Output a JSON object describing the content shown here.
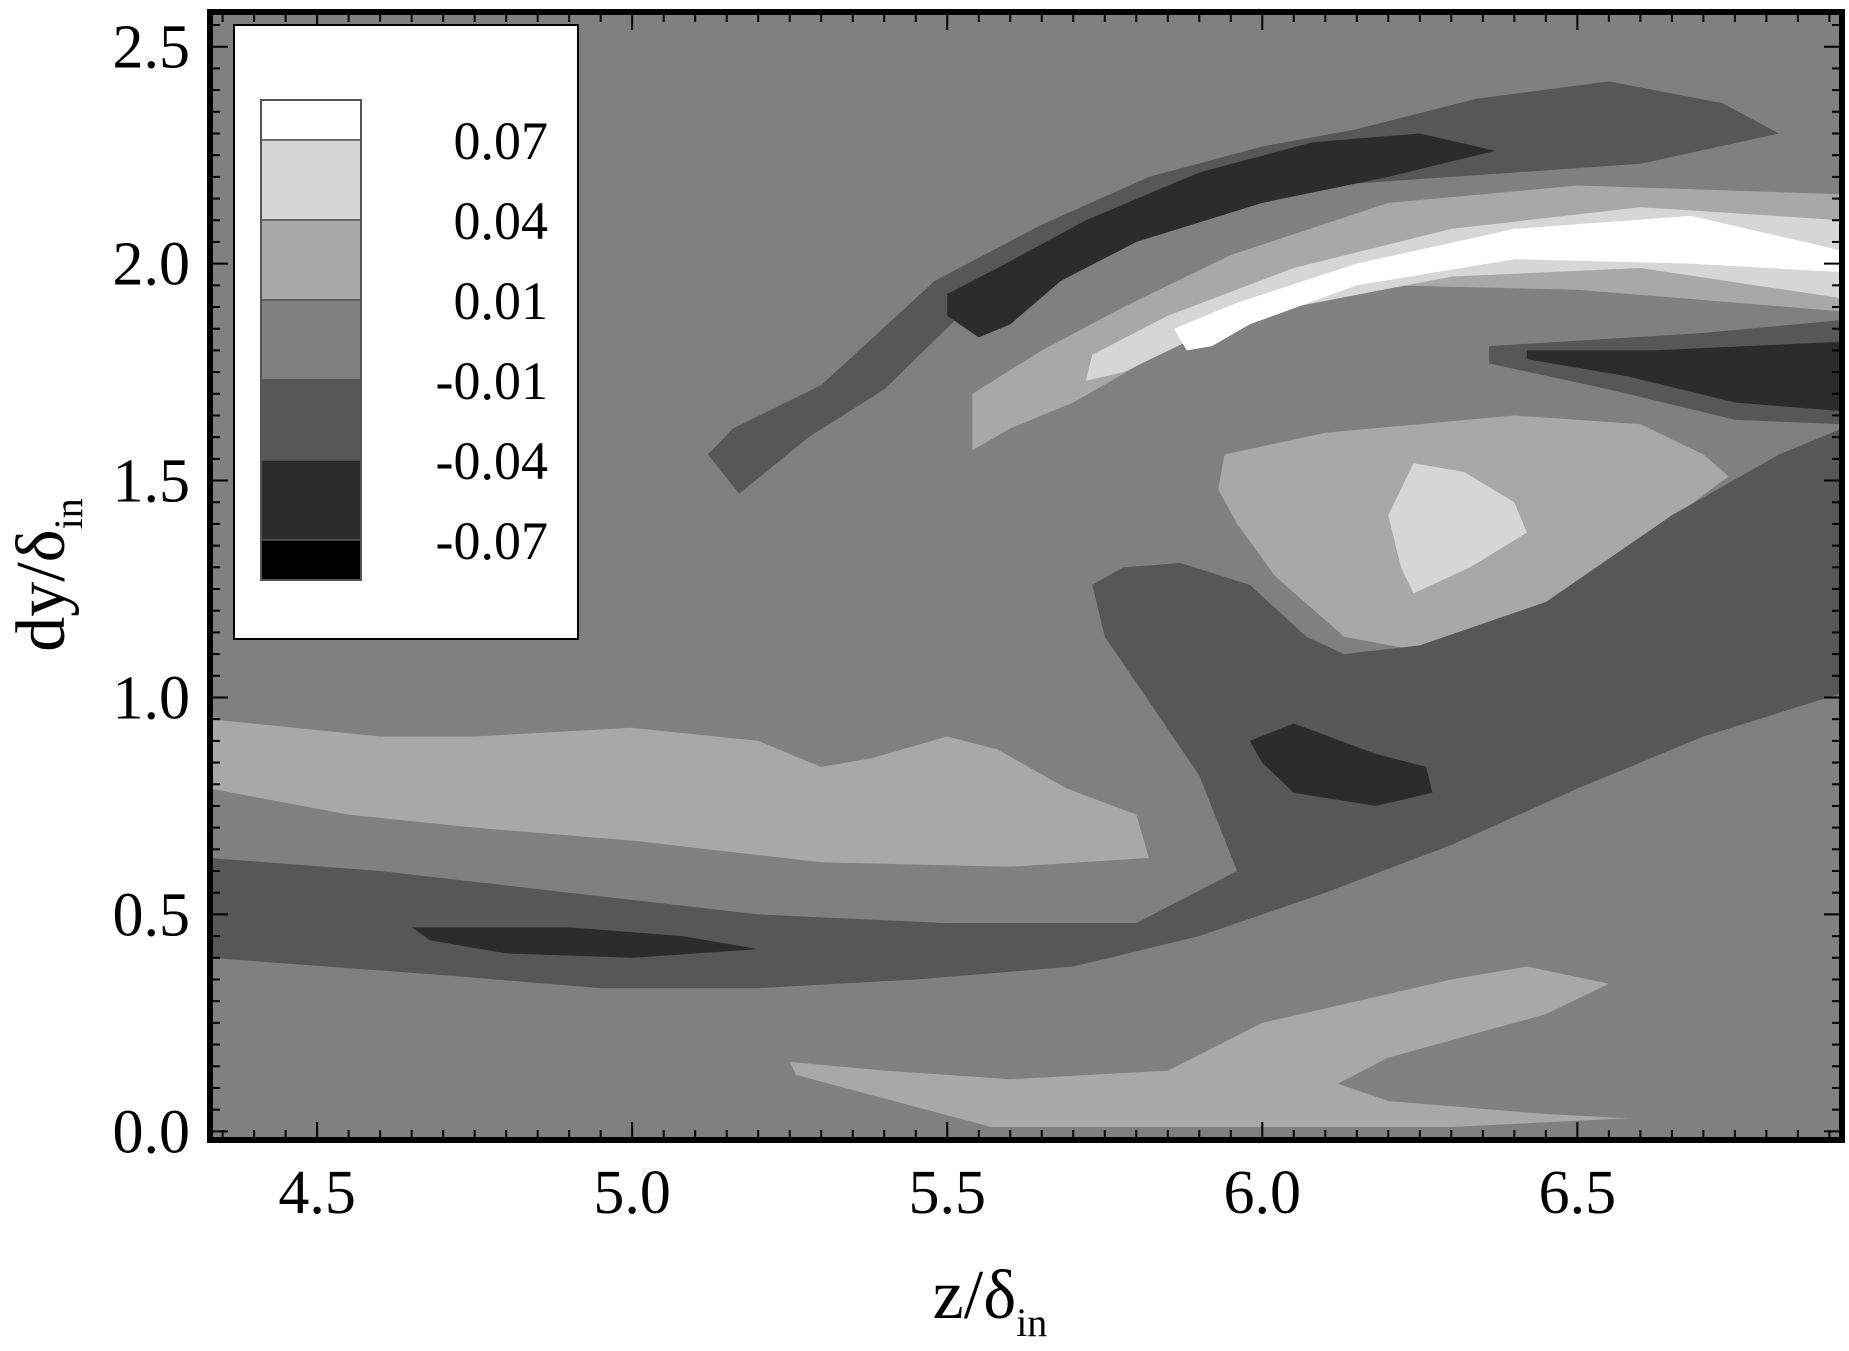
{
  "chart_data": {
    "type": "heatmap",
    "subtype": "filled-contour",
    "xlabel": {
      "main": "z/δ",
      "sub": "in"
    },
    "ylabel": {
      "main": "dy/δ",
      "sub": "in"
    },
    "xlim": [
      4.33,
      6.92
    ],
    "ylim": [
      -0.02,
      2.58
    ],
    "x_ticks": [
      "4.5",
      "5.0",
      "5.5",
      "6.0",
      "6.5"
    ],
    "y_ticks": [
      "0.0",
      "0.5",
      "1.0",
      "1.5",
      "2.0",
      "2.5"
    ],
    "legend": {
      "position": "top-left",
      "levels": [
        "0.07",
        "0.04",
        "0.01",
        "-0.01",
        "-0.04",
        "-0.07"
      ],
      "colors": [
        "#ffffff",
        "#d6d6d6",
        "#a8a8a8",
        "#808080",
        "#575757",
        "#2c2c2c",
        "#000000"
      ]
    },
    "background_color": "#808080",
    "regions": [
      {
        "name": "upper-ridge-outer",
        "level": -0.01,
        "color": "#575757",
        "points": [
          [
            5.17,
            1.47
          ],
          [
            5.12,
            1.56
          ],
          [
            5.16,
            1.62
          ],
          [
            5.3,
            1.72
          ],
          [
            5.48,
            1.96
          ],
          [
            5.65,
            2.09
          ],
          [
            5.82,
            2.2
          ],
          [
            6.0,
            2.27
          ],
          [
            6.15,
            2.31
          ],
          [
            6.34,
            2.38
          ],
          [
            6.55,
            2.42
          ],
          [
            6.73,
            2.37
          ],
          [
            6.82,
            2.3
          ],
          [
            6.6,
            2.23
          ],
          [
            6.3,
            2.2
          ],
          [
            6.0,
            2.17
          ],
          [
            5.8,
            2.1
          ],
          [
            5.65,
            2.0
          ],
          [
            5.52,
            1.88
          ],
          [
            5.4,
            1.71
          ],
          [
            5.28,
            1.6
          ]
        ]
      },
      {
        "name": "upper-ridge-core",
        "level": -0.04,
        "color": "#2c2c2c",
        "points": [
          [
            5.5,
            1.88
          ],
          [
            5.5,
            1.93
          ],
          [
            5.58,
            1.99
          ],
          [
            5.72,
            2.1
          ],
          [
            5.9,
            2.21
          ],
          [
            6.08,
            2.28
          ],
          [
            6.25,
            2.3
          ],
          [
            6.37,
            2.26
          ],
          [
            6.2,
            2.2
          ],
          [
            6.0,
            2.14
          ],
          [
            5.8,
            2.05
          ],
          [
            5.68,
            1.96
          ],
          [
            5.6,
            1.86
          ],
          [
            5.55,
            1.83
          ]
        ]
      },
      {
        "name": "upper-jet-outer",
        "level": 0.01,
        "color": "#a8a8a8",
        "points": [
          [
            5.54,
            1.57
          ],
          [
            5.54,
            1.7
          ],
          [
            5.65,
            1.8
          ],
          [
            5.78,
            1.9
          ],
          [
            5.95,
            2.02
          ],
          [
            6.2,
            2.14
          ],
          [
            6.5,
            2.18
          ],
          [
            6.92,
            2.16
          ],
          [
            6.92,
            1.89
          ],
          [
            6.5,
            1.94
          ],
          [
            6.2,
            1.95
          ],
          [
            5.95,
            1.88
          ],
          [
            5.82,
            1.78
          ],
          [
            5.7,
            1.68
          ],
          [
            5.6,
            1.62
          ]
        ]
      },
      {
        "name": "upper-jet-mid",
        "level": 0.04,
        "color": "#d6d6d6",
        "points": [
          [
            5.72,
            1.73
          ],
          [
            5.73,
            1.79
          ],
          [
            5.85,
            1.88
          ],
          [
            6.05,
            1.99
          ],
          [
            6.3,
            2.08
          ],
          [
            6.6,
            2.13
          ],
          [
            6.92,
            2.1
          ],
          [
            6.92,
            1.92
          ],
          [
            6.6,
            1.99
          ],
          [
            6.3,
            1.97
          ],
          [
            6.05,
            1.9
          ],
          [
            5.88,
            1.82
          ],
          [
            5.78,
            1.75
          ]
        ]
      },
      {
        "name": "upper-jet-core",
        "level": 0.07,
        "color": "#ffffff",
        "points": [
          [
            5.88,
            1.8
          ],
          [
            5.86,
            1.85
          ],
          [
            5.96,
            1.91
          ],
          [
            6.15,
            2.0
          ],
          [
            6.4,
            2.08
          ],
          [
            6.68,
            2.11
          ],
          [
            6.92,
            2.03
          ],
          [
            6.92,
            1.98
          ],
          [
            6.68,
            2.0
          ],
          [
            6.4,
            2.01
          ],
          [
            6.15,
            1.95
          ],
          [
            5.98,
            1.86
          ],
          [
            5.92,
            1.81
          ]
        ]
      },
      {
        "name": "right-band-upper",
        "level": -0.01,
        "color": "#575757",
        "points": [
          [
            6.36,
            1.81
          ],
          [
            6.7,
            1.84
          ],
          [
            6.92,
            1.87
          ],
          [
            6.92,
            1.63
          ],
          [
            6.75,
            1.64
          ],
          [
            6.55,
            1.71
          ],
          [
            6.36,
            1.77
          ]
        ]
      },
      {
        "name": "right-band-upper-core",
        "level": -0.04,
        "color": "#2c2c2c",
        "points": [
          [
            6.42,
            1.8
          ],
          [
            6.62,
            1.8
          ],
          [
            6.92,
            1.82
          ],
          [
            6.92,
            1.66
          ],
          [
            6.75,
            1.68
          ],
          [
            6.58,
            1.74
          ],
          [
            6.42,
            1.78
          ]
        ]
      },
      {
        "name": "center-blob-outer",
        "level": 0.01,
        "color": "#a8a8a8",
        "points": [
          [
            5.93,
            1.48
          ],
          [
            5.94,
            1.56
          ],
          [
            6.1,
            1.61
          ],
          [
            6.4,
            1.65
          ],
          [
            6.6,
            1.63
          ],
          [
            6.7,
            1.56
          ],
          [
            6.74,
            1.51
          ],
          [
            6.62,
            1.38
          ],
          [
            6.52,
            1.26
          ],
          [
            6.38,
            1.15
          ],
          [
            6.24,
            1.11
          ],
          [
            6.13,
            1.14
          ],
          [
            6.02,
            1.28
          ],
          [
            5.96,
            1.4
          ]
        ]
      },
      {
        "name": "center-blob-core",
        "level": 0.04,
        "color": "#d6d6d6",
        "points": [
          [
            6.22,
            1.3
          ],
          [
            6.2,
            1.42
          ],
          [
            6.24,
            1.54
          ],
          [
            6.32,
            1.52
          ],
          [
            6.4,
            1.45
          ],
          [
            6.42,
            1.38
          ],
          [
            6.33,
            1.3
          ],
          [
            6.24,
            1.24
          ]
        ]
      },
      {
        "name": "lower-swirl",
        "level": -0.01,
        "color": "#575757",
        "points": [
          [
            4.33,
            0.63
          ],
          [
            4.6,
            0.6
          ],
          [
            4.9,
            0.55
          ],
          [
            5.2,
            0.5
          ],
          [
            5.5,
            0.48
          ],
          [
            5.8,
            0.48
          ],
          [
            5.96,
            0.6
          ],
          [
            5.9,
            0.82
          ],
          [
            5.83,
            0.97
          ],
          [
            5.75,
            1.14
          ],
          [
            5.73,
            1.26
          ],
          [
            5.78,
            1.3
          ],
          [
            5.87,
            1.31
          ],
          [
            5.98,
            1.26
          ],
          [
            6.07,
            1.14
          ],
          [
            6.13,
            1.1
          ],
          [
            6.25,
            1.12
          ],
          [
            6.45,
            1.22
          ],
          [
            6.65,
            1.42
          ],
          [
            6.82,
            1.56
          ],
          [
            6.92,
            1.62
          ],
          [
            6.92,
            1.01
          ],
          [
            6.7,
            0.91
          ],
          [
            6.5,
            0.79
          ],
          [
            6.3,
            0.66
          ],
          [
            6.1,
            0.55
          ],
          [
            5.9,
            0.45
          ],
          [
            5.7,
            0.38
          ],
          [
            5.45,
            0.35
          ],
          [
            5.2,
            0.33
          ],
          [
            4.95,
            0.33
          ],
          [
            4.7,
            0.36
          ],
          [
            4.33,
            0.4
          ]
        ]
      },
      {
        "name": "mid-dark-spot",
        "level": -0.04,
        "color": "#2c2c2c",
        "points": [
          [
            5.98,
            0.9
          ],
          [
            6.0,
            0.85
          ],
          [
            6.05,
            0.78
          ],
          [
            6.18,
            0.75
          ],
          [
            6.27,
            0.78
          ],
          [
            6.26,
            0.84
          ],
          [
            6.18,
            0.87
          ],
          [
            6.05,
            0.94
          ]
        ]
      },
      {
        "name": "lower-dark-streak",
        "level": -0.04,
        "color": "#2c2c2c",
        "points": [
          [
            4.65,
            0.47
          ],
          [
            4.68,
            0.44
          ],
          [
            4.8,
            0.41
          ],
          [
            5.0,
            0.4
          ],
          [
            5.2,
            0.42
          ],
          [
            5.08,
            0.45
          ],
          [
            4.9,
            0.47
          ]
        ]
      },
      {
        "name": "left-band-outer",
        "level": 0.01,
        "color": "#a8a8a8",
        "points": [
          [
            4.33,
            0.95
          ],
          [
            4.6,
            0.91
          ],
          [
            4.75,
            0.91
          ],
          [
            5.0,
            0.93
          ],
          [
            5.2,
            0.9
          ],
          [
            5.3,
            0.84
          ],
          [
            5.38,
            0.86
          ],
          [
            5.5,
            0.91
          ],
          [
            5.58,
            0.88
          ],
          [
            5.69,
            0.79
          ],
          [
            5.8,
            0.73
          ],
          [
            5.82,
            0.63
          ],
          [
            5.6,
            0.61
          ],
          [
            5.3,
            0.62
          ],
          [
            5.0,
            0.67
          ],
          [
            4.75,
            0.7
          ],
          [
            4.55,
            0.73
          ],
          [
            4.33,
            0.79
          ]
        ]
      },
      {
        "name": "bottom-band",
        "level": 0.01,
        "color": "#a8a8a8",
        "points": [
          [
            5.26,
            0.13
          ],
          [
            5.25,
            0.16
          ],
          [
            5.4,
            0.14
          ],
          [
            5.6,
            0.12
          ],
          [
            5.85,
            0.14
          ],
          [
            6.0,
            0.25
          ],
          [
            6.3,
            0.35
          ],
          [
            6.42,
            0.38
          ],
          [
            6.55,
            0.34
          ],
          [
            6.45,
            0.27
          ],
          [
            6.2,
            0.17
          ],
          [
            6.12,
            0.11
          ],
          [
            6.2,
            0.07
          ],
          [
            6.45,
            0.04
          ],
          [
            6.58,
            0.03
          ],
          [
            6.3,
            0.01
          ],
          [
            5.85,
            0.01
          ],
          [
            5.57,
            0.01
          ]
        ]
      }
    ]
  }
}
